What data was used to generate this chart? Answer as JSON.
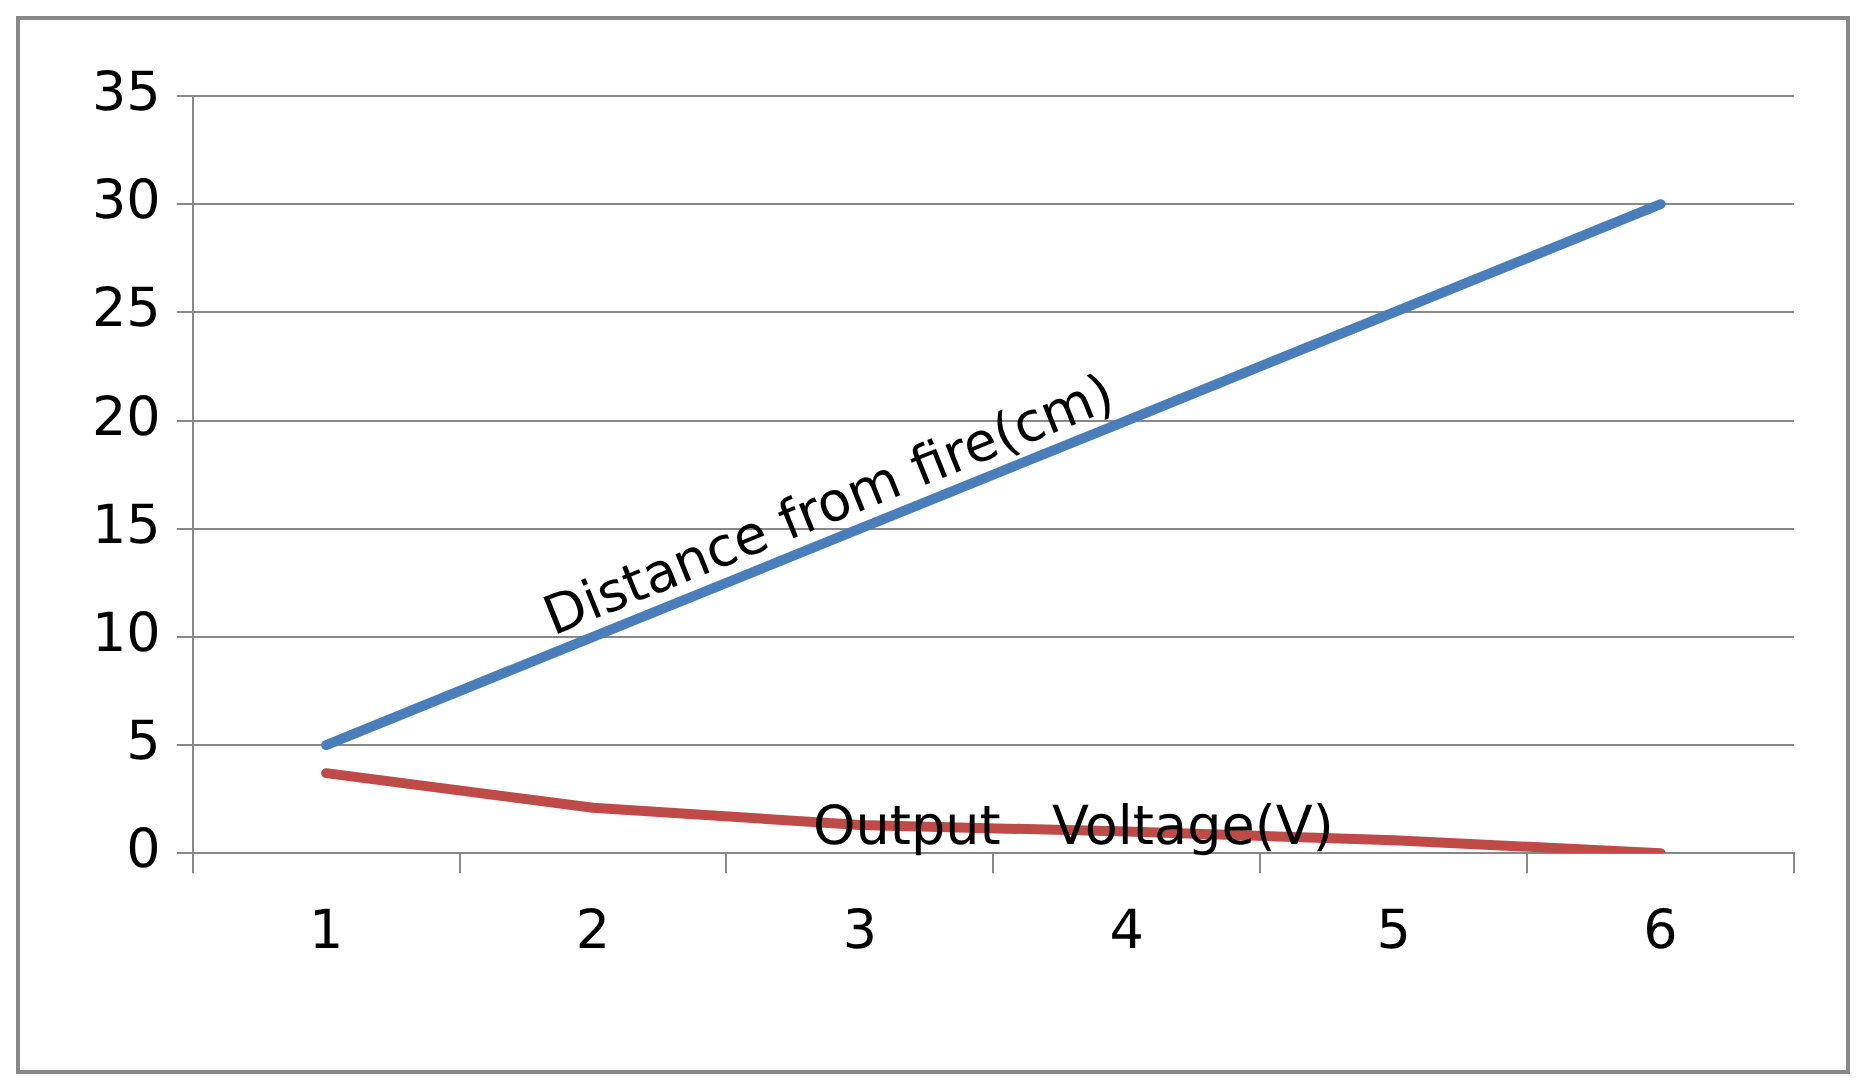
{
  "chart_data": {
    "type": "line",
    "categories": [
      "1",
      "2",
      "3",
      "4",
      "5",
      "6"
    ],
    "series": [
      {
        "name": "Distance from fire(cm)",
        "color": "#4a7ebb",
        "values": [
          5,
          10,
          15,
          20,
          25,
          30
        ]
      },
      {
        "name": "Output   Voltage(V)",
        "color": "#be4b48",
        "values": [
          3.7,
          2.1,
          1.3,
          1.0,
          0.6,
          0
        ]
      }
    ],
    "ylim": [
      0,
      35
    ],
    "yticks": [
      0,
      5,
      10,
      15,
      20,
      25,
      30,
      35
    ],
    "grid": "y",
    "legend": false,
    "marker": "none",
    "line_style": "solid"
  }
}
